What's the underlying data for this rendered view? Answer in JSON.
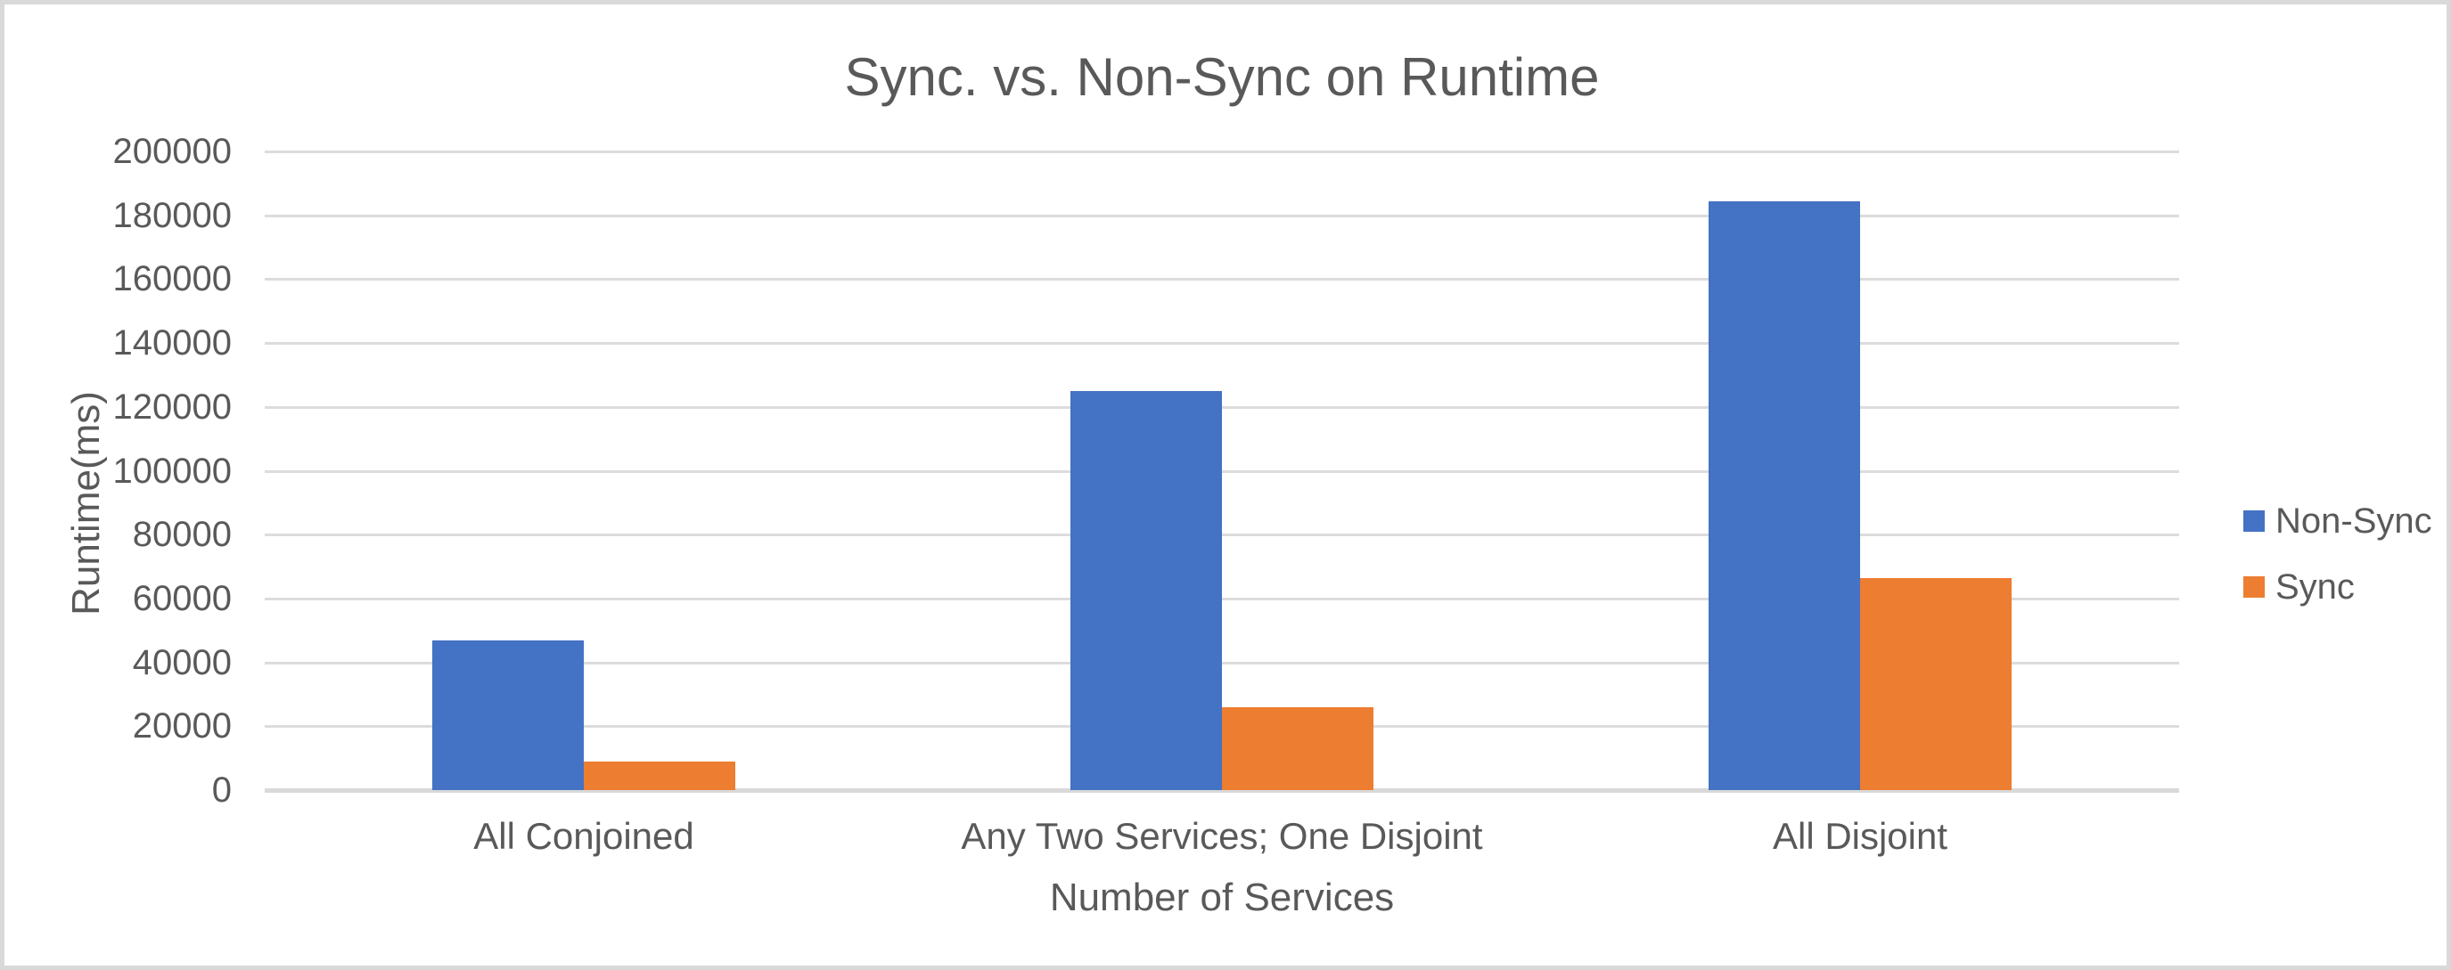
{
  "window": {
    "background_color": "#ffffff",
    "border_color": "#d9d9d9"
  },
  "chart_data": {
    "type": "bar",
    "title": "Sync. vs. Non-Sync on Runtime",
    "xlabel": "Number of Services",
    "ylabel": "Runtime(ms)",
    "categories": [
      "All Conjoined",
      "Any Two Services; One Disjoint",
      "All Disjoint"
    ],
    "series": [
      {
        "name": "Non-Sync",
        "color": "#4472C4",
        "values": [
          47000,
          125000,
          184500
        ]
      },
      {
        "name": "Sync",
        "color": "#ED7D31",
        "values": [
          9000,
          26000,
          66500
        ]
      }
    ],
    "ylim": [
      0,
      200000
    ],
    "ytick_step": 20000,
    "ytick_labels": [
      "0",
      "20000",
      "40000",
      "60000",
      "80000",
      "100000",
      "120000",
      "140000",
      "160000",
      "180000",
      "200000"
    ],
    "grid": true,
    "legend_position": "right",
    "text_color": "#595959",
    "gridline_color": "#dcdcdc",
    "axis_line_color": "#d9d9d9"
  }
}
